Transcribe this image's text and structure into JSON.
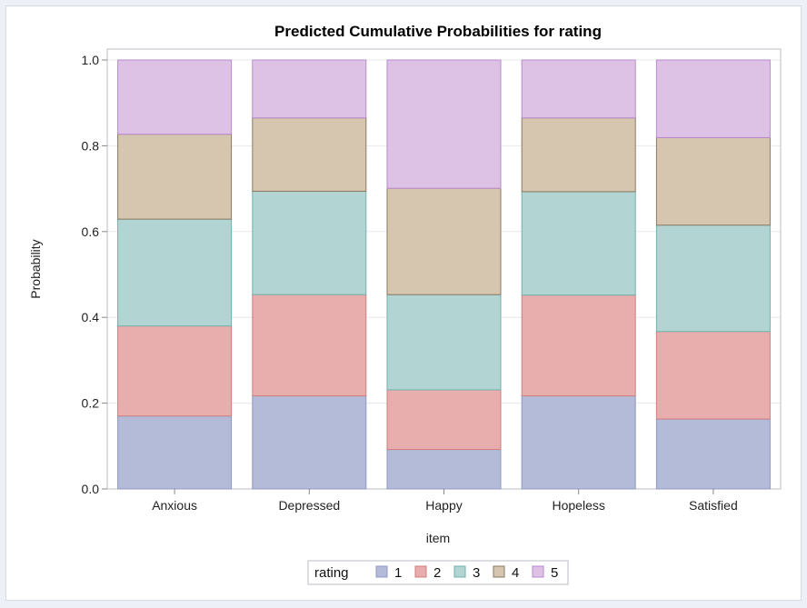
{
  "chart_data": {
    "type": "bar",
    "stacked": true,
    "title": "Predicted Cumulative Probabilities for rating",
    "xlabel": "item",
    "ylabel": "Probability",
    "ylim": [
      0,
      1
    ],
    "yticks": [
      "0.0",
      "0.2",
      "0.4",
      "0.6",
      "0.8",
      "1.0"
    ],
    "grid": true,
    "legend_placement": "bottom",
    "legend_title": "rating",
    "categories": [
      "Anxious",
      "Depressed",
      "Happy",
      "Hopeless",
      "Satisfied"
    ],
    "series": [
      {
        "name": "1",
        "color": "#b4bbd8",
        "edge": "#8e98c4",
        "values": [
          0.17,
          0.217,
          0.092,
          0.217,
          0.163
        ]
      },
      {
        "name": "2",
        "color": "#e8adad",
        "edge": "#cf7f7f",
        "values": [
          0.21,
          0.236,
          0.139,
          0.235,
          0.204
        ]
      },
      {
        "name": "3",
        "color": "#b2d4d2",
        "edge": "#6fb3ae",
        "values": [
          0.249,
          0.241,
          0.222,
          0.241,
          0.248
        ]
      },
      {
        "name": "4",
        "color": "#d6c6b0",
        "edge": "#8b7a62",
        "values": [
          0.198,
          0.171,
          0.248,
          0.172,
          0.204
        ]
      },
      {
        "name": "5",
        "color": "#ddc2e6",
        "edge": "#b98ad0",
        "values": [
          0.173,
          0.135,
          0.299,
          0.135,
          0.181
        ]
      }
    ]
  }
}
